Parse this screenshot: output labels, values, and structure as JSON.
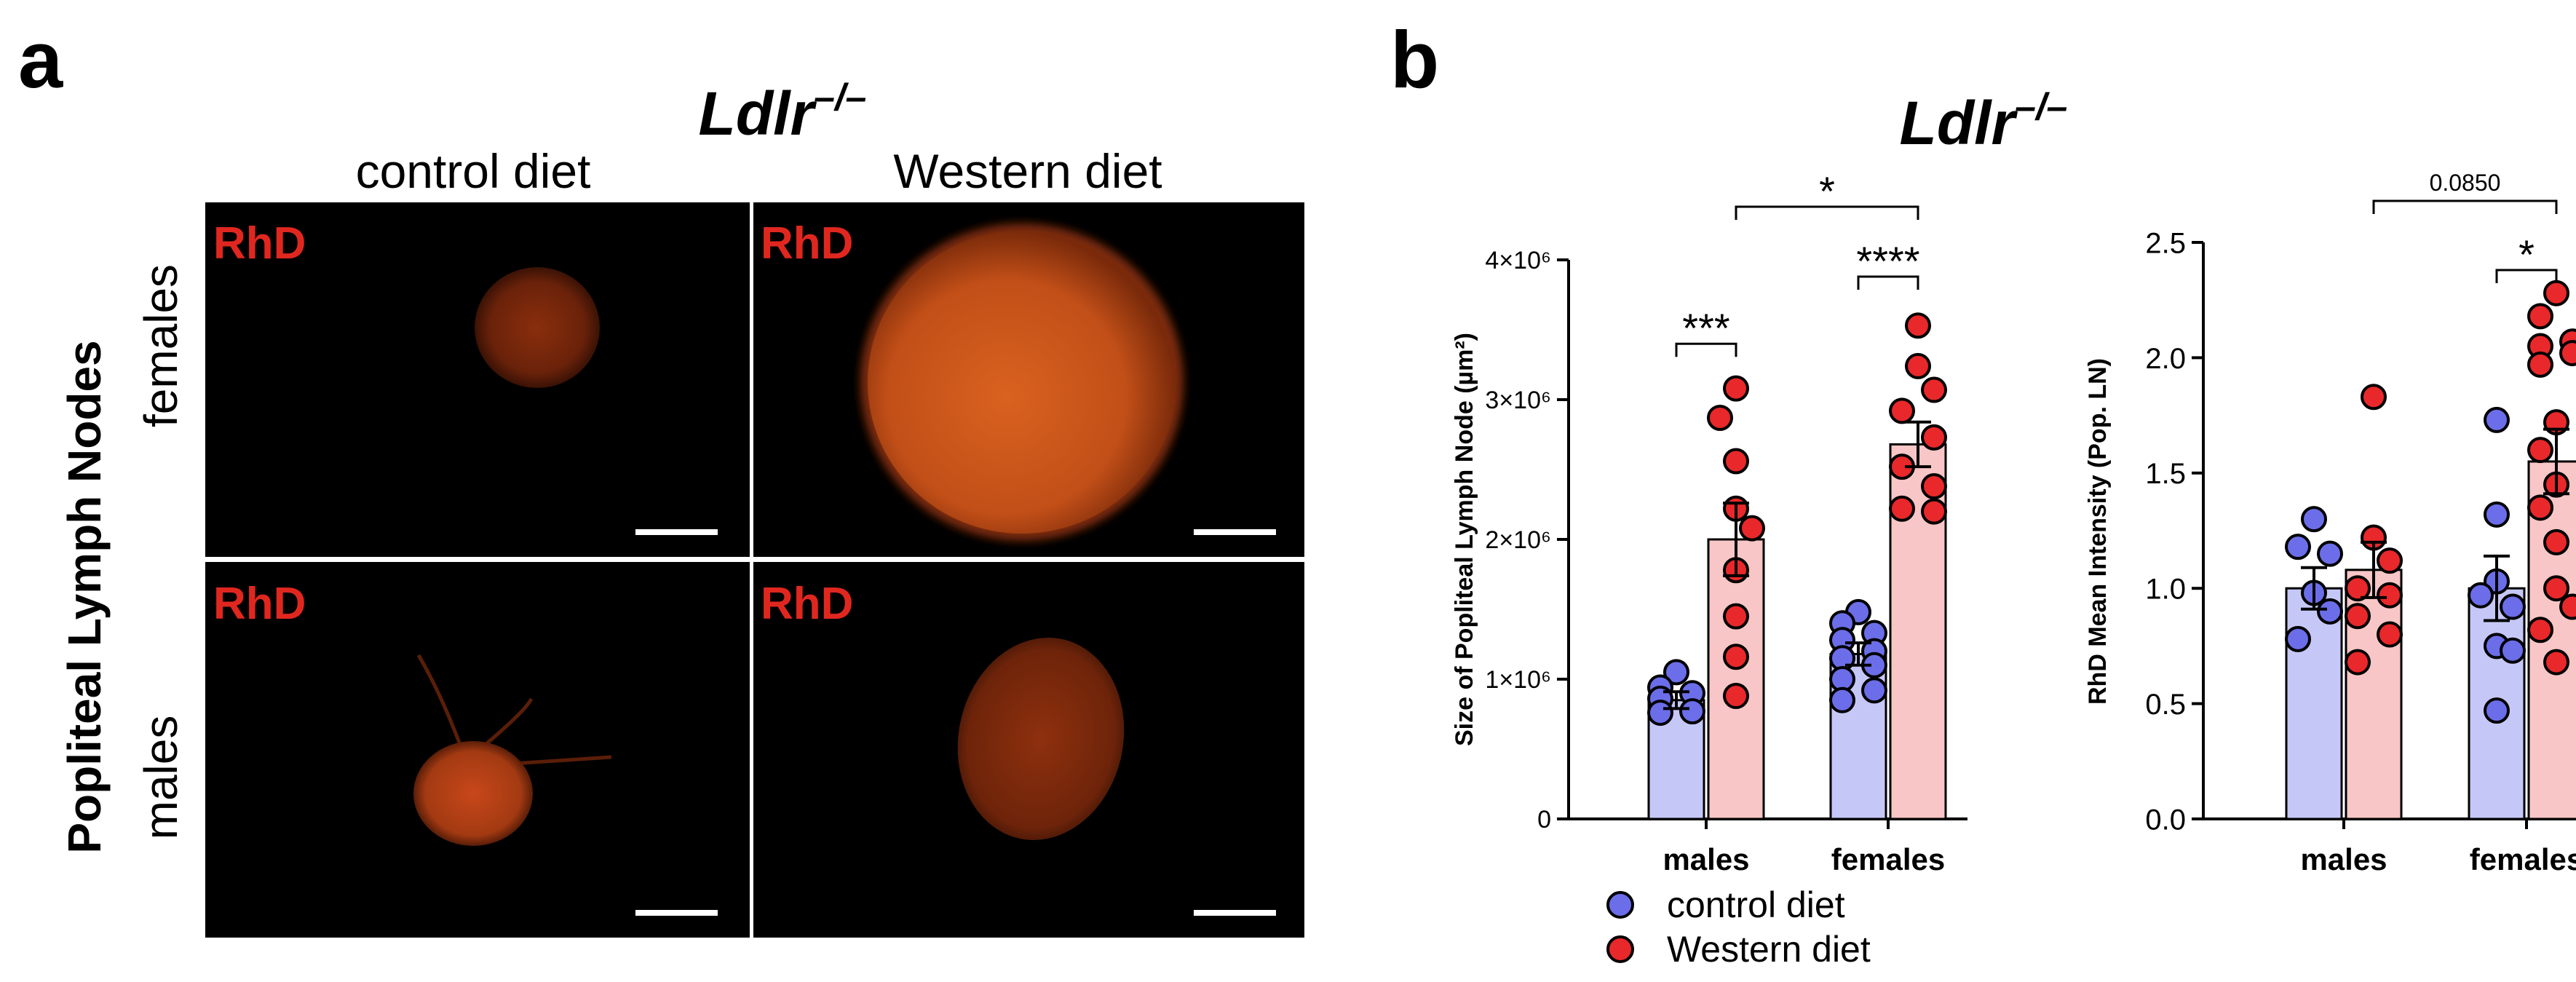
{
  "panel_a": {
    "letter": "a",
    "genotype": "Ldlr",
    "genotype_sup": "–/–",
    "row_group_label": "Popliteal Lymph Nodes",
    "columns": [
      "control diet",
      "Western diet"
    ],
    "rows": [
      "females",
      "males"
    ],
    "stain_label": "RhD",
    "colors": {
      "stain": "#e0271f",
      "tissue": "#d9531a",
      "background": "#000000"
    }
  },
  "panel_b": {
    "letter": "b",
    "genotype": "Ldlr",
    "genotype_sup": "–/–"
  },
  "legend": {
    "items": [
      {
        "label": "control diet",
        "color": "#6b6ee8"
      },
      {
        "label": "Western diet",
        "color": "#e8282a"
      }
    ]
  },
  "colors": {
    "control_bar": "#c5c8f7",
    "western_bar": "#f8c6c6",
    "control_dot": "#6b6ee8",
    "western_dot": "#e8282a"
  },
  "chart_data": [
    {
      "type": "bar",
      "ylabel": "Size of Popliteal Lymph Node (µm²)",
      "ylim": [
        0,
        4000000
      ],
      "yticks": [
        {
          "value": 0,
          "label": "0"
        },
        {
          "value": 1000000,
          "label": "1×10⁶"
        },
        {
          "value": 2000000,
          "label": "2×10⁶"
        },
        {
          "value": 3000000,
          "label": "3×10⁶"
        },
        {
          "value": 4000000,
          "label": "4×10⁶"
        }
      ],
      "categories": [
        "males",
        "females"
      ],
      "series": [
        {
          "name": "control diet",
          "means": [
            850000,
            1180000
          ],
          "sem": [
            60000,
            80000
          ],
          "points": [
            [
              1050000,
              940000,
              900000,
              860000,
              770000,
              760000
            ],
            [
              1480000,
              1400000,
              1330000,
              1280000,
              1200000,
              1150000,
              1100000,
              1000000,
              920000,
              850000
            ]
          ]
        },
        {
          "name": "Western diet",
          "means": [
            2000000,
            2680000
          ],
          "sem": [
            260000,
            160000
          ],
          "points": [
            [
              3080000,
              2870000,
              2560000,
              2220000,
              2080000,
              1780000,
              1450000,
              1160000,
              880000
            ],
            [
              3530000,
              3240000,
              3070000,
              2920000,
              2730000,
              2520000,
              2380000,
              2220000,
              2200000
            ]
          ]
        }
      ],
      "annotations": [
        {
          "label": "***",
          "from": [
            0,
            0
          ],
          "to": [
            0,
            1
          ],
          "y": 3400000
        },
        {
          "label": "****",
          "from": [
            1,
            0
          ],
          "to": [
            1,
            1
          ],
          "y": 3880000
        },
        {
          "label": "*",
          "from": [
            0,
            1
          ],
          "to": [
            1,
            1
          ],
          "y": 4380000
        }
      ]
    },
    {
      "type": "bar",
      "ylabel": "RhD Mean Intensity (Pop. LN)",
      "ylim": [
        0,
        2.5
      ],
      "yticks": [
        {
          "value": 0,
          "label": "0.0"
        },
        {
          "value": 0.5,
          "label": "0.5"
        },
        {
          "value": 1.0,
          "label": "1.0"
        },
        {
          "value": 1.5,
          "label": "1.5"
        },
        {
          "value": 2.0,
          "label": "2.0"
        },
        {
          "value": 2.5,
          "label": "2.5"
        }
      ],
      "categories": [
        "males",
        "females"
      ],
      "series": [
        {
          "name": "control diet",
          "means": [
            1.0,
            1.0
          ],
          "sem": [
            0.09,
            0.14
          ],
          "points": [
            [
              1.3,
              1.18,
              1.15,
              0.98,
              0.9,
              0.78
            ],
            [
              1.73,
              1.32,
              1.03,
              0.97,
              0.92,
              0.75,
              0.73,
              0.47
            ]
          ]
        },
        {
          "name": "Western diet",
          "means": [
            1.08,
            1.55
          ],
          "sem": [
            0.12,
            0.14
          ],
          "points": [
            [
              1.83,
              1.22,
              1.12,
              1.0,
              0.97,
              0.88,
              0.8,
              0.68
            ],
            [
              2.28,
              2.18,
              2.07,
              2.05,
              2.02,
              1.97,
              1.72,
              1.6,
              1.45,
              1.35,
              1.2,
              1.0,
              0.92,
              0.82,
              0.68
            ]
          ]
        }
      ],
      "annotations": [
        {
          "label": "*",
          "from": [
            1,
            0
          ],
          "to": [
            1,
            1
          ],
          "y": 2.38
        },
        {
          "label": "0.0850",
          "from": [
            0,
            1
          ],
          "to": [
            1,
            1
          ],
          "y": 2.68
        }
      ]
    }
  ]
}
